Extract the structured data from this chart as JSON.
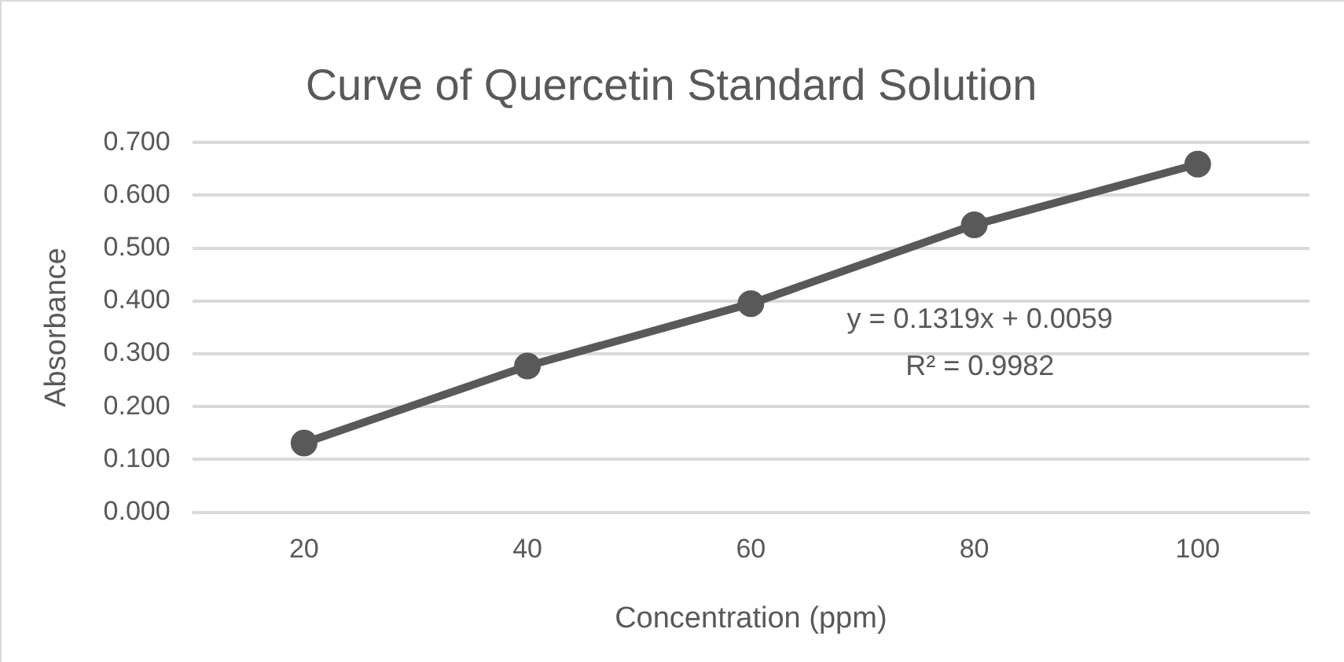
{
  "chart_data": {
    "type": "line",
    "title": "Curve of Quercetin Standard Solution",
    "xlabel": "Concentration (ppm)",
    "ylabel": "Absorbance",
    "categories": [
      "20",
      "40",
      "60",
      "80",
      "100"
    ],
    "series": [
      {
        "color": "#595959",
        "values": [
          0.131,
          0.277,
          0.395,
          0.544,
          0.659
        ]
      }
    ],
    "ylim": [
      0,
      0.7
    ],
    "yticks": [
      {
        "value": 0,
        "label": "0.000"
      },
      {
        "value": 0.1,
        "label": "0.100"
      },
      {
        "value": 0.2,
        "label": "0.200"
      },
      {
        "value": 0.3,
        "label": "0.300"
      },
      {
        "value": 0.4,
        "label": "0.400"
      },
      {
        "value": 0.5,
        "label": "0.500"
      },
      {
        "value": 0.6,
        "label": "0.600"
      },
      {
        "value": 0.7,
        "label": "0.700"
      }
    ],
    "grid": "y",
    "marker": "circle",
    "line_style": "solid",
    "legend": false,
    "annotations": [
      "y = 0.1319x + 0.0059",
      "R² = 0.9982"
    ]
  }
}
